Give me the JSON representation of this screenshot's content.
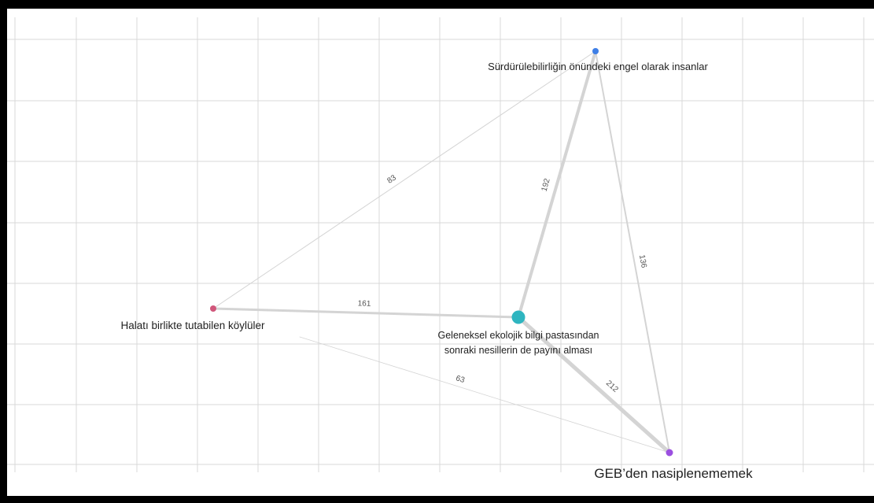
{
  "diagram": {
    "nodes": [
      {
        "id": "n1",
        "label": "Sürdürülebilirliğin önündeki engel olarak insanlar",
        "color": "#3f7fe6"
      },
      {
        "id": "n2",
        "label": "Halatı birlikte tutabilen köylüler",
        "color": "#d0567a"
      },
      {
        "id": "n3",
        "label_lines": [
          "Geleneksel ekolojik bilgi pastasından",
          "sonraki nesillerin de payını alması"
        ],
        "color": "#2fb5c0"
      },
      {
        "id": "n4",
        "label": "GEB’den nasiplenememek",
        "color": "#9b4fe0"
      }
    ],
    "edges": [
      {
        "from": "n2",
        "to": "n1",
        "weight": "83"
      },
      {
        "from": "n3",
        "to": "n1",
        "weight": "192"
      },
      {
        "from": "n1",
        "to": "n4",
        "weight": "136"
      },
      {
        "from": "n2",
        "to": "n3",
        "weight": "161"
      },
      {
        "from": "n2",
        "to": "n4",
        "weight": "63"
      },
      {
        "from": "n3",
        "to": "n4",
        "weight": "212"
      }
    ]
  },
  "colors": {
    "frame": "#000000",
    "canvas": "#ffffff",
    "grid": "#d9d9d9",
    "edge": "#d4d4d4"
  }
}
